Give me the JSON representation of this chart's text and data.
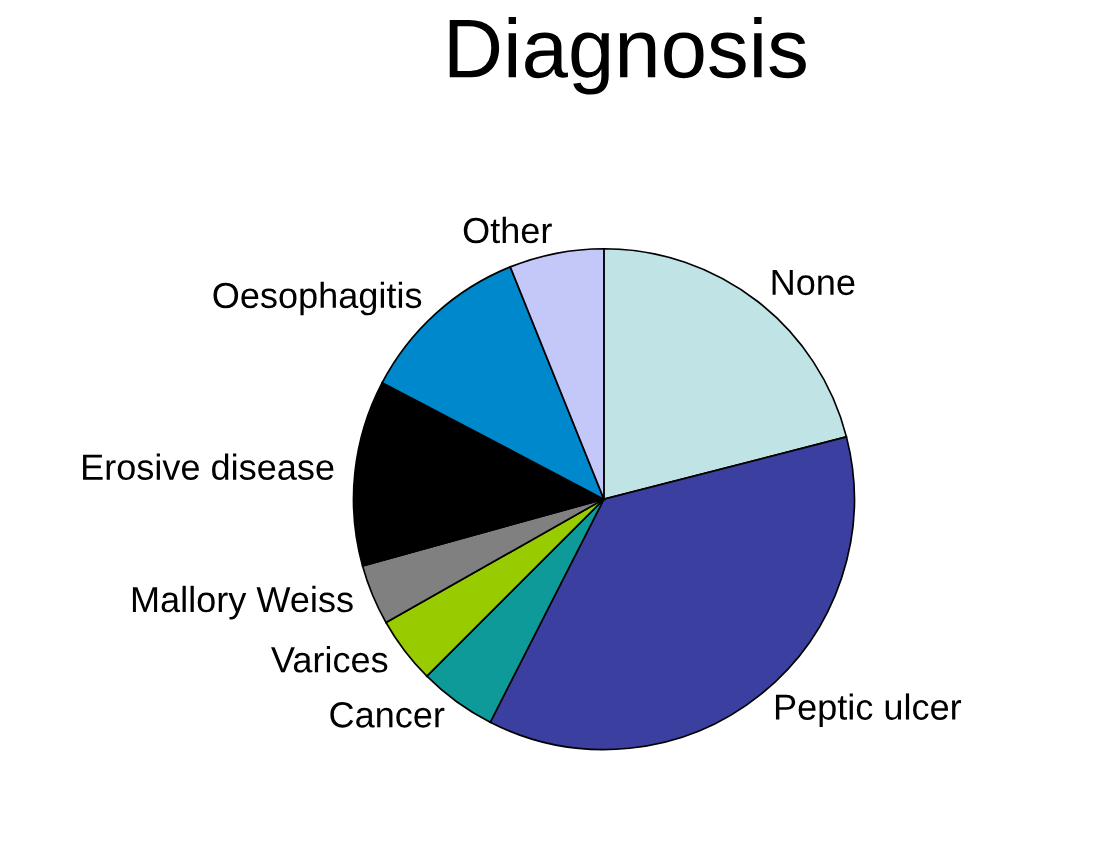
{
  "chart_data": {
    "type": "pie",
    "title": "Diagnosis",
    "categories": [
      "None",
      "Peptic ulcer",
      "Cancer",
      "Varices",
      "Mallory Weiss",
      "Erosive disease",
      "Oesophagitis",
      "Other"
    ],
    "values": [
      21,
      36.5,
      5,
      4.3,
      3.9,
      12,
      11.2,
      6.1
    ],
    "colors": [
      "#c0e4e6",
      "#3b3fa0",
      "#0f9a9a",
      "#99cc00",
      "#808080",
      "#000000",
      "#0088cc",
      "#c4c8f8"
    ],
    "legend": false
  }
}
